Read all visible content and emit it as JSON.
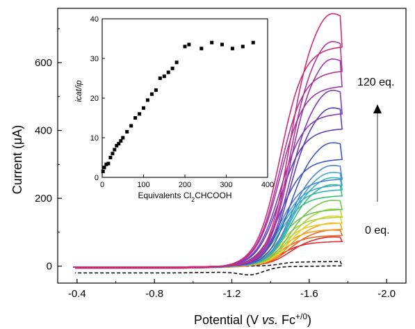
{
  "chart_data": [
    {
      "type": "line",
      "xlabel": "Potential (V vs. Fc+/0)",
      "xlabel_parts": {
        "pre": "Potential (V ",
        "italic": "vs.",
        "mid": " Fc",
        "sup": "+/0",
        "post": ")"
      },
      "ylabel": "Current (μA)",
      "xlim": [
        -0.3,
        -2.1
      ],
      "ylim": [
        -50,
        760
      ],
      "x_reversed": true,
      "x_ticks": [
        -0.4,
        -0.8,
        -1.2,
        -1.6,
        -2.0
      ],
      "x_tick_labels": [
        "-0.4",
        "-0.8",
        "-1.2",
        "-1.6",
        "-2.0"
      ],
      "y_ticks": [
        0,
        200,
        400,
        600
      ],
      "y_tick_labels": [
        "0",
        "200",
        "400",
        "600"
      ],
      "grid": false,
      "annotations": {
        "top_label": "120 eq.",
        "bottom_label": "0 eq."
      },
      "series_colors": [
        "#e32b2b",
        "#ee6420",
        "#f3a21c",
        "#e6d028",
        "#a8d43a",
        "#6cc74a",
        "#3cbf7e",
        "#2fb6b4",
        "#41a6d6",
        "#4a82d2",
        "#3f55c4",
        "#5b3dbb",
        "#7f3bb8",
        "#9b36a8",
        "#b3329a",
        "#c92f88",
        "#d12a73"
      ],
      "series": [
        {
          "condition": "0 eq.",
          "limiting_current": 80,
          "style": "dashed",
          "color": "#000000"
        },
        {
          "limiting_current": 80,
          "color": "#e32b2b"
        },
        {
          "limiting_current": 100,
          "color": "#ee6420"
        },
        {
          "limiting_current": 120,
          "color": "#f3a21c"
        },
        {
          "limiting_current": 140,
          "color": "#e6d028"
        },
        {
          "limiting_current": 160,
          "color": "#a8d43a"
        },
        {
          "limiting_current": 185,
          "color": "#6cc74a"
        },
        {
          "limiting_current": 230,
          "color": "#3cbf7e"
        },
        {
          "limiting_current": 250,
          "color": "#2fb6b4"
        },
        {
          "limiting_current": 265,
          "color": "#41a6d6"
        },
        {
          "limiting_current": 285,
          "color": "#4a82d2"
        },
        {
          "limiting_current": 350,
          "color": "#3f55c4"
        },
        {
          "limiting_current": 450,
          "color": "#5b3dbb"
        },
        {
          "limiting_current": 500,
          "color": "#7f3bb8"
        },
        {
          "limiting_current": 590,
          "color": "#9b36a8"
        },
        {
          "limiting_current": 640,
          "color": "#b3329a"
        },
        {
          "condition": "120 eq.",
          "limiting_current": 720,
          "color": "#d12a73"
        }
      ]
    },
    {
      "type": "scatter",
      "inset": true,
      "xlabel": "Equivalents Cl2CHCOOH",
      "xlabel_parts": {
        "pre": "Equivalents Cl",
        "sub": "2",
        "post": "CHCOOH"
      },
      "ylabel": "icat/ip",
      "xlim": [
        0,
        400
      ],
      "ylim": [
        0,
        40
      ],
      "x_ticks": [
        0,
        100,
        200,
        300,
        400
      ],
      "x_tick_labels": [
        "0",
        "100",
        "200",
        "300",
        "400"
      ],
      "y_ticks": [
        0,
        10,
        20,
        30,
        40
      ],
      "y_tick_labels": [
        "0",
        "10",
        "20",
        "30",
        "40"
      ],
      "grid": false,
      "x": [
        2,
        5,
        10,
        15,
        20,
        25,
        30,
        35,
        40,
        45,
        50,
        60,
        70,
        80,
        90,
        100,
        110,
        120,
        130,
        140,
        150,
        160,
        170,
        180,
        200,
        210,
        240,
        265,
        290,
        315,
        340,
        365
      ],
      "y": [
        1.5,
        2.5,
        3.3,
        3.5,
        5.0,
        6.0,
        7.0,
        8.0,
        8.5,
        9.2,
        10.0,
        11.5,
        13.0,
        15.0,
        16.0,
        17.5,
        19.5,
        21.0,
        22.0,
        25.0,
        25.5,
        26.5,
        27.5,
        29.0,
        33.0,
        33.5,
        32.5,
        34.0,
        33.5,
        32.5,
        33.0,
        34.0
      ],
      "marker": "square",
      "marker_color": "#000000"
    }
  ]
}
